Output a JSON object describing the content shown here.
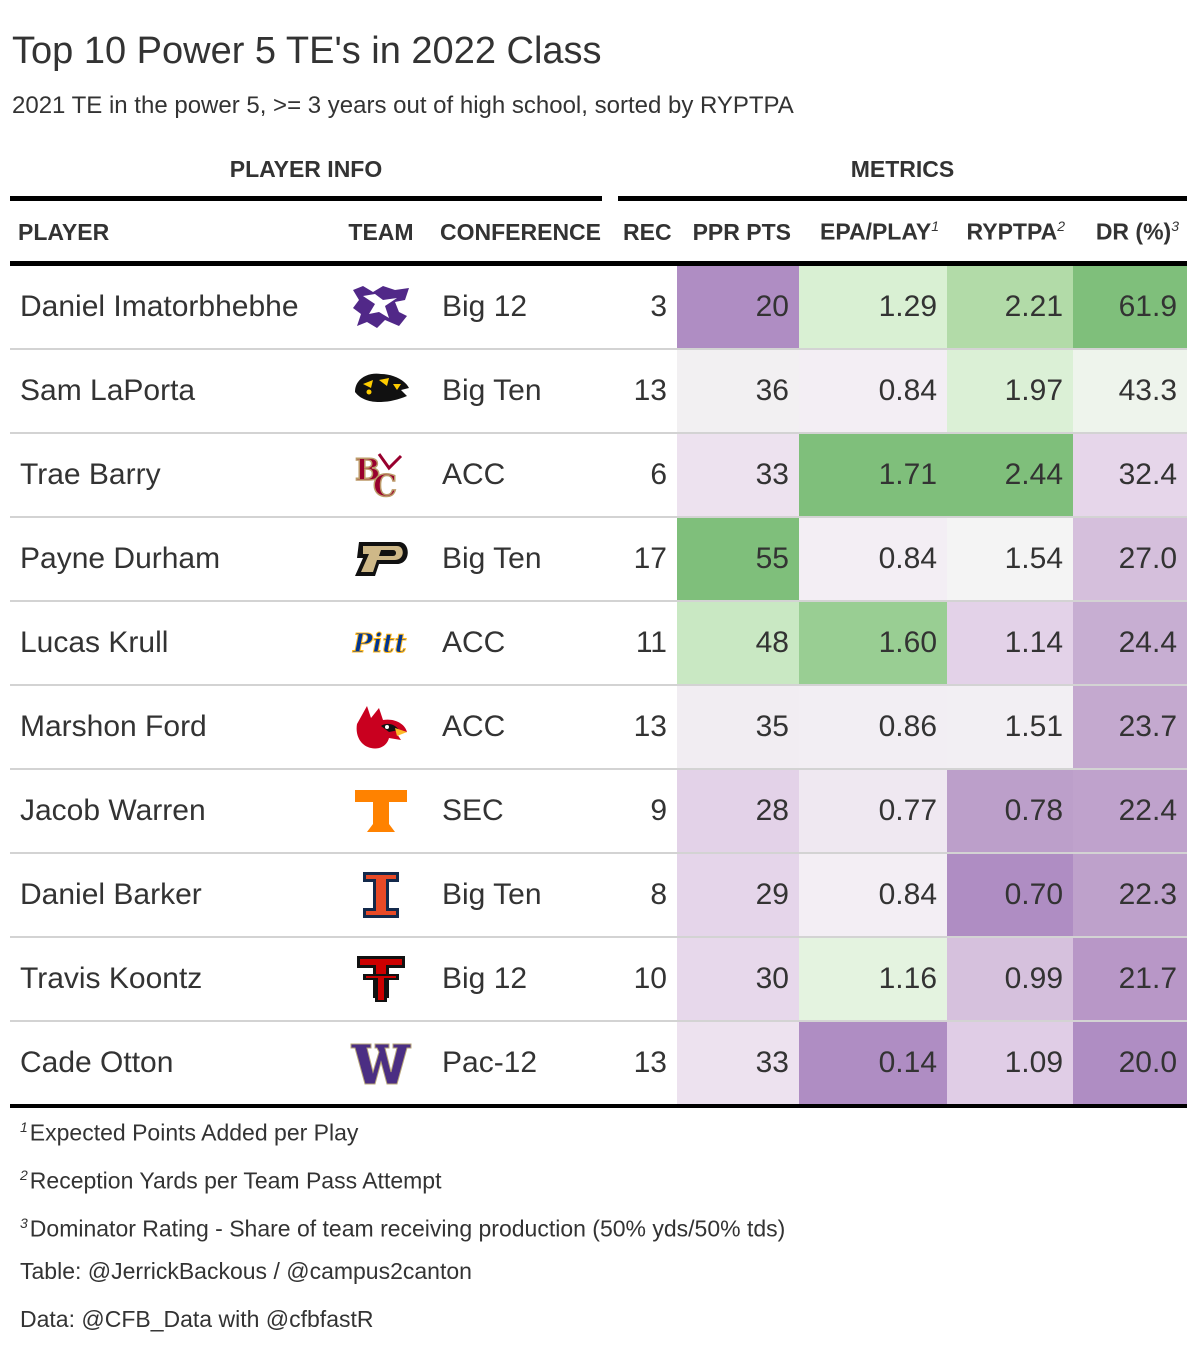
{
  "title": "Top 10 Power 5 TE's in 2022 Class",
  "subtitle": "2021 TE in the power 5, >= 3 years out of high school, sorted by RYPTPA",
  "spanners": {
    "player_info": "PLAYER INFO",
    "metrics": "METRICS"
  },
  "columns": {
    "player": "PLAYER",
    "team": "TEAM",
    "conference": "CONFERENCE",
    "rec": "REC",
    "ppr": "PPR PTS",
    "epa": "EPA/PLAY",
    "epa_mark": "1",
    "ryptpa": "RYPTPA",
    "ryptpa_mark": "2",
    "dr": "DR (%)",
    "dr_mark": "3"
  },
  "rows": [
    {
      "player": "Daniel Imatorbhebhe",
      "team_logo": "kansas-state-wildcat-logo",
      "conference": "Big 12",
      "rec": "3",
      "ppr": "20",
      "epa": "1.29",
      "ryptpa": "2.21",
      "dr": "61.9",
      "colors": {
        "ppr": "#af8dc3",
        "epa": "#d9f0d3",
        "ryptpa": "#b2dba8",
        "dr": "#7fbf7b"
      }
    },
    {
      "player": "Sam LaPorta",
      "team_logo": "iowa-hawkeye-logo",
      "conference": "Big Ten",
      "rec": "13",
      "ppr": "36",
      "epa": "0.84",
      "ryptpa": "1.97",
      "dr": "43.3",
      "colors": {
        "ppr": "#f2f0f2",
        "epa": "#f3eef4",
        "ryptpa": "#dbf0d6",
        "dr": "#eef4ec"
      }
    },
    {
      "player": "Trae Barry",
      "team_logo": "boston-college-logo",
      "conference": "ACC",
      "rec": "6",
      "ppr": "33",
      "epa": "1.71",
      "ryptpa": "2.44",
      "dr": "32.4",
      "colors": {
        "ppr": "#ede2ef",
        "epa": "#7fbf7b",
        "ryptpa": "#7fbf7b",
        "dr": "#e6d6ea"
      }
    },
    {
      "player": "Payne Durham",
      "team_logo": "purdue-p-logo",
      "conference": "Big Ten",
      "rec": "17",
      "ppr": "55",
      "epa": "0.84",
      "ryptpa": "1.54",
      "dr": "27.0",
      "colors": {
        "ppr": "#7fbf7b",
        "epa": "#f3eef4",
        "ryptpa": "#f4f4f4",
        "dr": "#d5bfdc"
      }
    },
    {
      "player": "Lucas Krull",
      "team_logo": "pitt-script-logo",
      "conference": "ACC",
      "rec": "11",
      "ppr": "48",
      "epa": "1.60",
      "ryptpa": "1.14",
      "dr": "24.4",
      "colors": {
        "ppr": "#c9e8c3",
        "epa": "#99ce93",
        "ryptpa": "#e3d2e8",
        "dr": "#c7aed2"
      }
    },
    {
      "player": "Marshon Ford",
      "team_logo": "louisville-cardinal-logo",
      "conference": "ACC",
      "rec": "13",
      "ppr": "35",
      "epa": "0.86",
      "ryptpa": "1.51",
      "dr": "23.7",
      "colors": {
        "ppr": "#f1edf2",
        "epa": "#f2eef3",
        "ryptpa": "#f2eff3",
        "dr": "#c4a9cf"
      }
    },
    {
      "player": "Jacob Warren",
      "team_logo": "tennessee-t-logo",
      "conference": "SEC",
      "rec": "9",
      "ppr": "28",
      "epa": "0.77",
      "ryptpa": "0.78",
      "dr": "22.4",
      "colors": {
        "ppr": "#e3d2e8",
        "epa": "#efe8f1",
        "ryptpa": "#bc9fca",
        "dr": "#bfa2cc"
      }
    },
    {
      "player": "Daniel Barker",
      "team_logo": "illinois-i-logo",
      "conference": "Big Ten",
      "rec": "8",
      "ppr": "29",
      "epa": "0.84",
      "ryptpa": "0.70",
      "dr": "22.3",
      "colors": {
        "ppr": "#e5d5ea",
        "epa": "#f3eef4",
        "ryptpa": "#af8dc3",
        "dr": "#bea1cb"
      }
    },
    {
      "player": "Travis Koontz",
      "team_logo": "texas-tech-double-t-logo",
      "conference": "Big 12",
      "rec": "10",
      "ppr": "30",
      "epa": "1.16",
      "ryptpa": "0.99",
      "dr": "21.7",
      "colors": {
        "ppr": "#e7d8eb",
        "epa": "#e4f3e0",
        "ryptpa": "#d6c1dd",
        "dr": "#b897c7"
      }
    },
    {
      "player": "Cade Otton",
      "team_logo": "washington-w-logo",
      "conference": "Pac-12",
      "rec": "13",
      "ppr": "33",
      "epa": "0.14",
      "ryptpa": "1.09",
      "dr": "20.0",
      "colors": {
        "ppr": "#ede2ef",
        "epa": "#af8dc3",
        "ryptpa": "#e0cde6",
        "dr": "#af8dc3"
      }
    }
  ],
  "footnotes": [
    {
      "mark": "1",
      "text": "Expected Points Added per Play"
    },
    {
      "mark": "2",
      "text": "Reception Yards per Team Pass Attempt"
    },
    {
      "mark": "3",
      "text": "Dominator Rating - Share of team receiving production (50% yds/50% tds)"
    }
  ],
  "source_notes": [
    "Table: @JerrickBackous / @campus2canton",
    "Data: @CFB_Data with @cfbfastR"
  ]
}
